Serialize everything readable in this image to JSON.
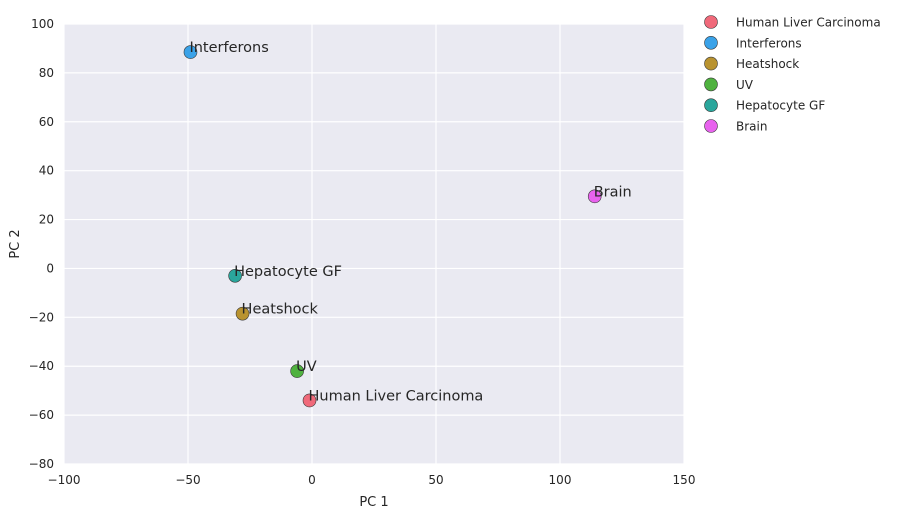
{
  "chart_data": {
    "type": "scatter",
    "title": "",
    "xlabel": "PC 1",
    "ylabel": "PC 2",
    "xlim": [
      -100,
      150
    ],
    "ylim": [
      -80,
      100
    ],
    "xticks": [
      -100,
      -50,
      0,
      50,
      100,
      150
    ],
    "yticks": [
      -80,
      -60,
      -40,
      -20,
      0,
      20,
      40,
      60,
      80,
      100
    ],
    "xtick_labels": [
      "−100",
      "−50",
      "0",
      "50",
      "100",
      "150"
    ],
    "ytick_labels": [
      "−80",
      "−60",
      "−40",
      "−20",
      "0",
      "20",
      "40",
      "60",
      "80",
      "100"
    ],
    "grid": true,
    "legend_position": "outside-top-right",
    "background_color": "#eaeaf2",
    "series": [
      {
        "name": "Human Liver Carcinoma",
        "color": "#f0697a",
        "x": -1,
        "y": -54
      },
      {
        "name": "Interferons",
        "color": "#3aa2e8",
        "x": -49,
        "y": 88.5
      },
      {
        "name": "Heatshock",
        "color": "#b99330",
        "x": -28,
        "y": -18.5
      },
      {
        "name": "UV",
        "color": "#4fb23f",
        "x": -6,
        "y": -42
      },
      {
        "name": "Hepatocyte GF",
        "color": "#2aa69c",
        "x": -31,
        "y": -3
      },
      {
        "name": "Brain",
        "color": "#e862ee",
        "x": 114,
        "y": 29.5
      }
    ]
  }
}
